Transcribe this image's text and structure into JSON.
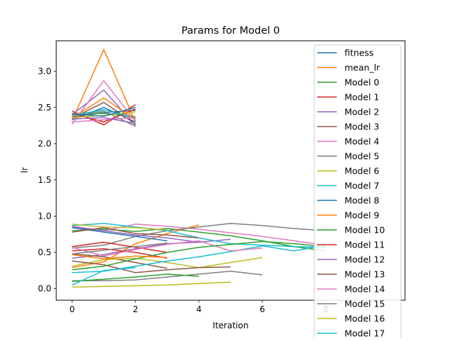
{
  "chart_data": {
    "type": "line",
    "title": "Params for Model 0",
    "xlabel": "Iteration",
    "ylabel": "lr",
    "xlim": [
      -0.5,
      10.5
    ],
    "ylim": [
      -0.16,
      3.42
    ],
    "x_ticks": [
      0,
      2,
      4,
      6,
      8
    ],
    "y_ticks": [
      0.0,
      0.5,
      1.0,
      1.5,
      2.0,
      2.5,
      3.0
    ],
    "grid": false,
    "legend_position": "top-right",
    "series": [
      {
        "name": "fitness",
        "color": "#1f77b4",
        "x": [
          0,
          1,
          2
        ],
        "y": [
          2.37,
          2.43,
          2.46
        ]
      },
      {
        "name": "mean_lr",
        "color": "#ff7f0e",
        "x": [
          0,
          1,
          2
        ],
        "y": [
          2.32,
          3.3,
          2.3
        ]
      },
      {
        "name": "Model 0",
        "color": "#2ca02c",
        "x": [
          0,
          1,
          2,
          3,
          4,
          5,
          6,
          7,
          8
        ],
        "y": [
          0.8,
          0.82,
          0.79,
          0.83,
          0.78,
          0.73,
          0.66,
          0.58,
          0.52
        ]
      },
      {
        "name": "Model 1",
        "color": "#d62728",
        "x": [
          0,
          1,
          2
        ],
        "y": [
          2.45,
          2.26,
          2.54
        ]
      },
      {
        "name": "Model 2",
        "color": "#9467bd",
        "x": [
          0,
          1,
          2,
          3,
          4,
          5
        ],
        "y": [
          0.42,
          0.47,
          0.55,
          0.62,
          0.64,
          0.68
        ]
      },
      {
        "name": "Model 3",
        "color": "#8c564b",
        "x": [
          0,
          1,
          2,
          3
        ],
        "y": [
          0.48,
          0.44,
          0.36,
          0.28
        ]
      },
      {
        "name": "Model 4",
        "color": "#e377c2",
        "x": [
          0,
          1,
          2,
          3,
          4,
          5,
          6,
          7,
          8
        ],
        "y": [
          0.86,
          0.8,
          0.89,
          0.86,
          0.82,
          0.77,
          0.72,
          0.66,
          0.6
        ]
      },
      {
        "name": "Model 5",
        "color": "#7f7f7f",
        "x": [
          0,
          1,
          2,
          3,
          4,
          5,
          6
        ],
        "y": [
          0.11,
          0.11,
          0.12,
          0.16,
          0.2,
          0.24,
          0.19
        ]
      },
      {
        "name": "Model 6",
        "color": "#bcbd22",
        "x": [
          0,
          1,
          2,
          3,
          4,
          5,
          6
        ],
        "y": [
          0.31,
          0.4,
          0.42,
          0.36,
          0.29,
          0.36,
          0.43
        ]
      },
      {
        "name": "Model 7",
        "color": "#17becf",
        "x": [
          0,
          1,
          2,
          3,
          4,
          5,
          6,
          7,
          8
        ],
        "y": [
          0.22,
          0.24,
          0.31,
          0.38,
          0.44,
          0.51,
          0.59,
          0.52,
          0.6
        ]
      },
      {
        "name": "Model 8",
        "color": "#1f77b4",
        "x": [
          0,
          1,
          2
        ],
        "y": [
          2.33,
          2.5,
          2.3
        ]
      },
      {
        "name": "Model 9",
        "color": "#ff7f0e",
        "x": [
          0,
          1,
          2,
          3,
          4
        ],
        "y": [
          0.29,
          0.37,
          0.62,
          0.76,
          0.88
        ]
      },
      {
        "name": "Model 10",
        "color": "#2ca02c",
        "x": [
          0,
          1,
          2,
          3,
          4
        ],
        "y": [
          0.1,
          0.13,
          0.16,
          0.2,
          0.17
        ]
      },
      {
        "name": "Model 11",
        "color": "#d62728",
        "x": [
          0,
          1,
          2,
          3
        ],
        "y": [
          0.52,
          0.55,
          0.5,
          0.42
        ]
      },
      {
        "name": "Model 12",
        "color": "#9467bd",
        "x": [
          0,
          1,
          2
        ],
        "y": [
          2.4,
          2.74,
          2.25
        ]
      },
      {
        "name": "Model 13",
        "color": "#8c564b",
        "x": [
          0,
          1,
          2,
          3,
          4,
          5
        ],
        "y": [
          0.38,
          0.33,
          0.22,
          0.26,
          0.29,
          0.3
        ]
      },
      {
        "name": "Model 14",
        "color": "#e377c2",
        "x": [
          0,
          1,
          2
        ],
        "y": [
          2.27,
          2.87,
          2.31
        ]
      },
      {
        "name": "Model 15",
        "color": "#7f7f7f",
        "x": [
          0,
          1,
          2,
          3,
          4,
          5,
          6,
          7,
          8
        ],
        "y": [
          0.56,
          0.6,
          0.72,
          0.8,
          0.85,
          0.9,
          0.87,
          0.83,
          0.8
        ]
      },
      {
        "name": "Model 16",
        "color": "#bcbd22",
        "x": [
          0,
          1,
          2,
          3,
          4,
          5
        ],
        "y": [
          0.02,
          0.03,
          0.04,
          0.05,
          0.07,
          0.09
        ]
      },
      {
        "name": "Model 17",
        "color": "#17becf",
        "x": [
          0,
          1,
          2,
          3,
          4,
          5,
          6,
          7,
          8
        ],
        "y": [
          0.87,
          0.9,
          0.85,
          0.8,
          0.7,
          0.62,
          0.6,
          0.58,
          0.57
        ]
      },
      {
        "name": "",
        "color": "#2ca02c",
        "x": [
          0,
          1,
          2
        ],
        "y": [
          2.4,
          2.42,
          2.37
        ]
      },
      {
        "name": "",
        "color": "#d62728",
        "x": [
          0,
          1,
          2
        ],
        "y": [
          2.42,
          2.3,
          2.48
        ]
      },
      {
        "name": "",
        "color": "#8c564b",
        "x": [
          0,
          1,
          2
        ],
        "y": [
          2.35,
          2.57,
          2.27
        ]
      },
      {
        "name": "",
        "color": "#7f7f7f",
        "x": [
          0,
          1,
          2
        ],
        "y": [
          2.38,
          2.45,
          2.24
        ]
      },
      {
        "name": "",
        "color": "#bcbd22",
        "x": [
          0,
          1,
          2
        ],
        "y": [
          2.36,
          2.39,
          2.44
        ]
      },
      {
        "name": "",
        "color": "#17becf",
        "x": [
          0,
          1,
          2
        ],
        "y": [
          2.39,
          2.47,
          2.35
        ]
      },
      {
        "name": "",
        "color": "#ff7f0e",
        "x": [
          0,
          1,
          2
        ],
        "y": [
          2.36,
          2.63,
          2.33
        ]
      },
      {
        "name": "",
        "color": "#1f77b4",
        "x": [
          0,
          1,
          2
        ],
        "y": [
          2.41,
          2.38,
          2.5
        ]
      },
      {
        "name": "",
        "color": "#e377c2",
        "x": [
          0,
          1,
          2
        ],
        "y": [
          2.3,
          2.33,
          2.36
        ]
      },
      {
        "name": "",
        "color": "#9467bd",
        "x": [
          0,
          1,
          2
        ],
        "y": [
          2.34,
          2.36,
          2.28
        ]
      },
      {
        "name": "",
        "color": "#d62728",
        "x": [
          0,
          1,
          2,
          3
        ],
        "y": [
          0.58,
          0.64,
          0.57,
          0.5
        ]
      },
      {
        "name": "",
        "color": "#9467bd",
        "x": [
          0,
          1,
          2,
          3,
          4
        ],
        "y": [
          0.85,
          0.8,
          0.74,
          0.7,
          0.64
        ]
      },
      {
        "name": "",
        "color": "#e377c2",
        "x": [
          0,
          1,
          2,
          3,
          4,
          5,
          6
        ],
        "y": [
          0.57,
          0.45,
          0.54,
          0.61,
          0.66,
          0.52,
          0.56
        ]
      },
      {
        "name": "",
        "color": "#1f77b4",
        "x": [
          0,
          1,
          2,
          3
        ],
        "y": [
          0.84,
          0.78,
          0.72,
          0.66
        ]
      },
      {
        "name": "",
        "color": "#2ca02c",
        "x": [
          0,
          1,
          2,
          3,
          4,
          5,
          6,
          7,
          8
        ],
        "y": [
          0.26,
          0.31,
          0.41,
          0.5,
          0.57,
          0.61,
          0.65,
          0.62,
          0.58
        ]
      },
      {
        "name": "",
        "color": "#8c564b",
        "x": [
          0,
          1,
          2,
          3,
          4
        ],
        "y": [
          0.78,
          0.84,
          0.76,
          0.74,
          0.7
        ]
      },
      {
        "name": "",
        "color": "#bcbd22",
        "x": [
          0,
          1,
          2,
          3
        ],
        "y": [
          0.89,
          0.85,
          0.84,
          0.81
        ]
      },
      {
        "name": "",
        "color": "#17becf",
        "x": [
          0,
          1,
          2
        ],
        "y": [
          0.05,
          0.25,
          0.29
        ]
      },
      {
        "name": "",
        "color": "#ff7f0e",
        "x": [
          0,
          1,
          2,
          3
        ],
        "y": [
          0.47,
          0.41,
          0.45,
          0.43
        ]
      },
      {
        "name": "",
        "color": "#7f7f7f",
        "x": [
          0,
          1,
          2,
          3
        ],
        "y": [
          0.48,
          0.53,
          0.58,
          0.63
        ]
      }
    ]
  }
}
